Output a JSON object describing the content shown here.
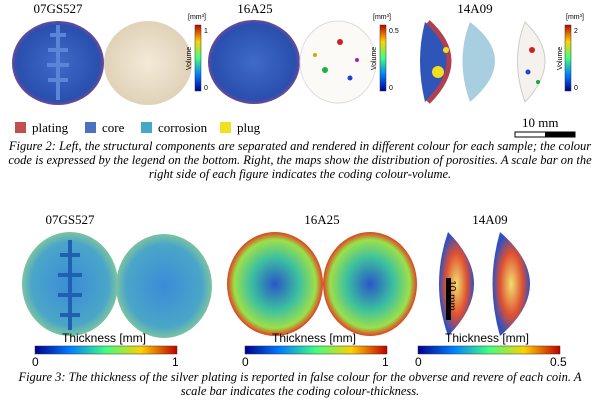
{
  "figure2": {
    "samples": [
      "07GS527",
      "16A25",
      "14A09"
    ],
    "colorbars": [
      {
        "unit": "[mm³]",
        "max": "1",
        "min": "0",
        "label": "Volume"
      },
      {
        "unit": "[mm³]",
        "max": "0.5",
        "min": "0",
        "label": "Volume"
      },
      {
        "unit": "[mm³]",
        "max": "2",
        "min": "0",
        "label": "Volume"
      }
    ],
    "legend": [
      "plating",
      "core",
      "corrosion",
      "plug"
    ],
    "scale_bar": "10 mm",
    "caption": "Figure 2: Left, the structural components are separated and rendered in different colour for each sample; the colour code is expressed by the legend on the bottom. Right, the maps show the distribution of porosities. A scale bar on the right side of each figure indicates the coding colour-volume."
  },
  "figure3": {
    "samples": [
      "07GS527",
      "16A25",
      "14A09"
    ],
    "colorbars": [
      {
        "label": "Thickness [mm]",
        "min": "0",
        "max": "1"
      },
      {
        "label": "Thickness [mm]",
        "min": "0",
        "max": "1"
      },
      {
        "label": "Thickness [mm]",
        "min": "0",
        "max": "0.5"
      }
    ],
    "scale_bar": "10 mm",
    "caption": "Figure 3: The thickness of the silver plating is reported in false colour for the obverse and revere of each coin. A scale bar indicates the coding colour-thickness."
  }
}
